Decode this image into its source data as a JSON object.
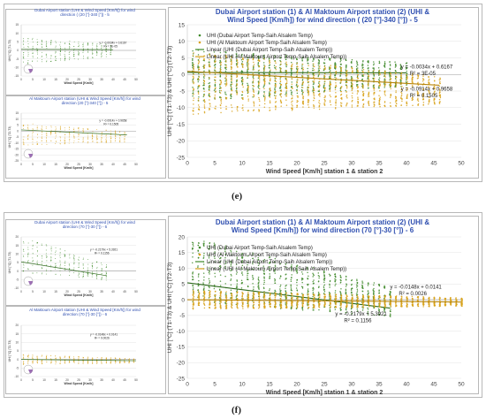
{
  "labels": {
    "e": "(e)",
    "f": "(f)"
  },
  "chart_data": [
    {
      "id": "e-big",
      "type": "scatter",
      "title": "Dubai Airport station (1) & Al Maktoum Airport station (2) (UHI & Wind Speed [Km/h]) for wind direction ( (20 [°]-340 [°]) - 5",
      "ylabel": "UHI [°C] (T1-T3) & UHI [°C] (T2-T3)",
      "xlabel": "Wind Speed [Km/h] station 1 & station 2",
      "xlim": [
        0,
        50
      ],
      "ylim": [
        -25,
        15
      ],
      "xticks": [
        0,
        5,
        10,
        15,
        20,
        25,
        30,
        35,
        40,
        45,
        50
      ],
      "yticks": [
        -25,
        -20,
        -15,
        -10,
        -5,
        0,
        5,
        10,
        15
      ],
      "legend": [
        "UHI (Dubai Airport Temp-Saih Alsalem Temp)",
        "UHI (Al Maktoum Airport Temp-Saih Alsalem Temp)",
        "Linear (UHI (Dubai Airport Temp-Saih Alsalem Temp))",
        "Linear (UHI (Al Maktoum Airport Temp-Saih Alsalem Temp))"
      ],
      "legend_position": "top-left",
      "series": [
        {
          "name": "UHI (Dubai Airport Temp-Saih Alsalem Temp)",
          "color": "#3f8a2a",
          "spread": [
            -9,
            7
          ],
          "xmax": 40,
          "slope": -0.0034,
          "intercept": 0.6167
        },
        {
          "name": "UHI (Al Maktoum Airport Temp-Saih Alsalem Temp)",
          "color": "#d8a21a",
          "spread": [
            -13,
            6
          ],
          "xmax": 46,
          "slope": -0.0914,
          "intercept": 0.9658
        }
      ],
      "annotations": [
        {
          "eq": "y = -0.0034x + 0.6167",
          "r2": "R² = 3E-05",
          "x": 39,
          "y": 1.8
        },
        {
          "eq": "y = -0.0914x + 0.9658",
          "r2": "R² = 0.1505",
          "x": 39,
          "y": -4.8
        }
      ]
    },
    {
      "id": "e-small-1",
      "type": "scatter",
      "title": "Dubai Airport station (UHI & Wind Speed [Km/h]) for wind direction ( (20 [°]-340 [°]) - 5",
      "ylabel": "UHI [°C] (T1-T3)",
      "xlabel": "Wind Speed [Km/h]",
      "xlim": [
        0,
        50
      ],
      "ylim": [
        -15,
        15
      ],
      "xticks": [
        0,
        5,
        10,
        15,
        20,
        25,
        30,
        35,
        40,
        45,
        50
      ],
      "yticks": [
        -15,
        -10,
        -5,
        0,
        5,
        10,
        15
      ],
      "series": [
        {
          "color": "#3f8a2a",
          "spread": [
            -9,
            7
          ],
          "xmax": 40,
          "slope": -0.0034,
          "intercept": 0.6167
        }
      ],
      "annotations": [
        {
          "eq": "y = -0.0034x + 0.6167",
          "r2": "R² = 3E-05",
          "x": 34,
          "y": 4
        }
      ]
    },
    {
      "id": "e-small-2",
      "type": "scatter",
      "title": "Al Maktoum Airport station (UHI & Wind Speed [Km/h]) for wind direction (20 [°]-340 [°]) - 5",
      "ylabel": "UHI [°C] (T2-T3)",
      "xlabel": "Wind Speed [Km/h]",
      "xlim": [
        0,
        50
      ],
      "ylim": [
        -25,
        15
      ],
      "xticks": [
        0,
        5,
        10,
        15,
        20,
        25,
        30,
        35,
        40,
        45,
        50
      ],
      "yticks": [
        -25,
        -20,
        -15,
        -10,
        -5,
        0,
        5,
        10,
        15
      ],
      "series": [
        {
          "color": "#d8a21a",
          "spread": [
            -13,
            6
          ],
          "xmax": 46,
          "slope": -0.0914,
          "intercept": 0.9658
        }
      ],
      "annotations": [
        {
          "eq": "y = -0.0914x + 0.9658",
          "r2": "R² = 0.1505",
          "x": 34,
          "y": 8
        }
      ]
    },
    {
      "id": "f-big",
      "type": "scatter",
      "title": "Dubai Airport station (1) & Al Maktoum Airport station (2) (UHI & Wind Speed [Km/h]) for wind direction (70 [°]-30 [°]) - 6",
      "ylabel": "UHI [°C] (T1-T3) & UHI [°C] (T2-T3)",
      "xlabel": "Wind Speed [Km/h] station 1 & station 2",
      "xlim": [
        0,
        50
      ],
      "ylim": [
        -25,
        20
      ],
      "xticks": [
        0,
        5,
        10,
        15,
        20,
        25,
        30,
        35,
        40,
        45,
        50
      ],
      "yticks": [
        -25,
        -20,
        -15,
        -10,
        -5,
        0,
        5,
        10,
        15,
        20
      ],
      "legend": [
        "UHI (Dubai Airport Temp-Saih Alsalem Temp)",
        "UHI (Al Maktoum Airport Temp-Saih Alsalem Temp)",
        "Linear (UHI (Dubai Airport Temp-Saih Alsalem Temp))",
        "Linear (UHI (Al Maktoum Airport Temp-Saih Alsalem Temp))"
      ],
      "legend_position": "top-left",
      "series": [
        {
          "name": "UHI (Dubai Airport Temp-Saih Alsalem Temp)",
          "color": "#3f8a2a",
          "spread": [
            -6,
            15
          ],
          "xmax": 37,
          "slope": -0.2179,
          "intercept": 5.3921
        },
        {
          "name": "UHI (Al Maktoum Airport Temp-Saih Alsalem Temp)",
          "color": "#d8a21a",
          "spread": [
            -3,
            3
          ],
          "xmax": 50,
          "slope": -0.0148,
          "intercept": 0.0141
        }
      ],
      "annotations": [
        {
          "eq": "y = -0.0148x + 0.0141",
          "r2": "R² = 0.0026",
          "x": 37,
          "y": 3.5
        },
        {
          "eq": "y = -0.2179x + 5.3921",
          "r2": "R² = 0.1156",
          "x": 27,
          "y": -5
        }
      ]
    },
    {
      "id": "f-small-1",
      "type": "scatter",
      "title": "Dubai Airport station (UHI & Wind Speed [Km/h]) for wind direction (70 [°]-30 [°]) - 6",
      "ylabel": "UHI [°C] (T1-T3)",
      "xlabel": "Wind Speed [Km/h]",
      "xlim": [
        0,
        50
      ],
      "ylim": [
        -10,
        20
      ],
      "xticks": [
        0,
        5,
        10,
        15,
        20,
        25,
        30,
        35,
        40,
        45,
        50
      ],
      "yticks": [
        -10,
        -5,
        0,
        5,
        10,
        15,
        20
      ],
      "series": [
        {
          "color": "#3f8a2a",
          "spread": [
            -6,
            15
          ],
          "xmax": 37,
          "slope": -0.2179,
          "intercept": 5.3921
        }
      ],
      "annotations": [
        {
          "eq": "y = -0.2179x + 5.3921",
          "r2": "R² = 0.1156",
          "x": 30,
          "y": 12
        }
      ]
    },
    {
      "id": "f-small-2",
      "type": "scatter",
      "title": "Al Maktoum Airport station (UHI & Wind Speed [Km/h]) for wind direction (70 [°]-30 [°]) - 6",
      "ylabel": "UHI [°C] (T2-T3)",
      "xlabel": "Wind Speed [Km/h]",
      "xlim": [
        0,
        50
      ],
      "ylim": [
        -10,
        20
      ],
      "xticks": [
        0,
        5,
        10,
        15,
        20,
        25,
        30,
        35,
        40,
        45,
        50
      ],
      "yticks": [
        -10,
        -5,
        0,
        5,
        10,
        15,
        20
      ],
      "series": [
        {
          "color": "#d8a21a",
          "spread": [
            -3,
            3
          ],
          "xmax": 50,
          "slope": -0.0148,
          "intercept": 0.0141
        }
      ],
      "annotations": [
        {
          "eq": "y = -0.0148x + 0.0141",
          "r2": "R² = 0.0026",
          "x": 30,
          "y": 14
        }
      ]
    }
  ]
}
